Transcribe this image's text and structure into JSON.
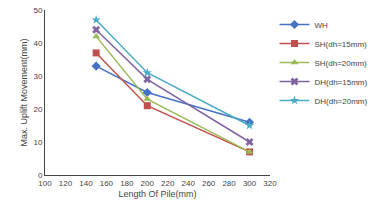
{
  "chart_data": {
    "type": "line",
    "x": [
      150,
      200,
      300
    ],
    "series": [
      {
        "name": "WH",
        "values": [
          33,
          25,
          16
        ],
        "color": "#4472c4",
        "marker": "diamond"
      },
      {
        "name": "SH(dh=15mm)",
        "values": [
          37,
          21,
          7
        ],
        "color": "#c0504d",
        "marker": "square"
      },
      {
        "name": "SH(dh=20mm)",
        "values": [
          42,
          23,
          7
        ],
        "color": "#9bbb59",
        "marker": "triangle-up"
      },
      {
        "name": "DH(dh=15mm)",
        "values": [
          44,
          29,
          10
        ],
        "color": "#8064a2",
        "marker": "x"
      },
      {
        "name": "DH(dh=20mm)",
        "values": [
          47,
          31,
          15
        ],
        "color": "#4bacc6",
        "marker": "star"
      }
    ],
    "xlabel": "Length Of Pile(mm)",
    "ylabel": "Max. Uplift Movement(mm)",
    "xlim": [
      100,
      320
    ],
    "ylim": [
      0,
      50
    ],
    "xticks": [
      100,
      120,
      140,
      160,
      180,
      200,
      220,
      240,
      260,
      280,
      300,
      320
    ],
    "yticks": [
      0,
      10,
      20,
      30,
      40,
      50
    ],
    "grid": false,
    "legend": "upper right"
  }
}
